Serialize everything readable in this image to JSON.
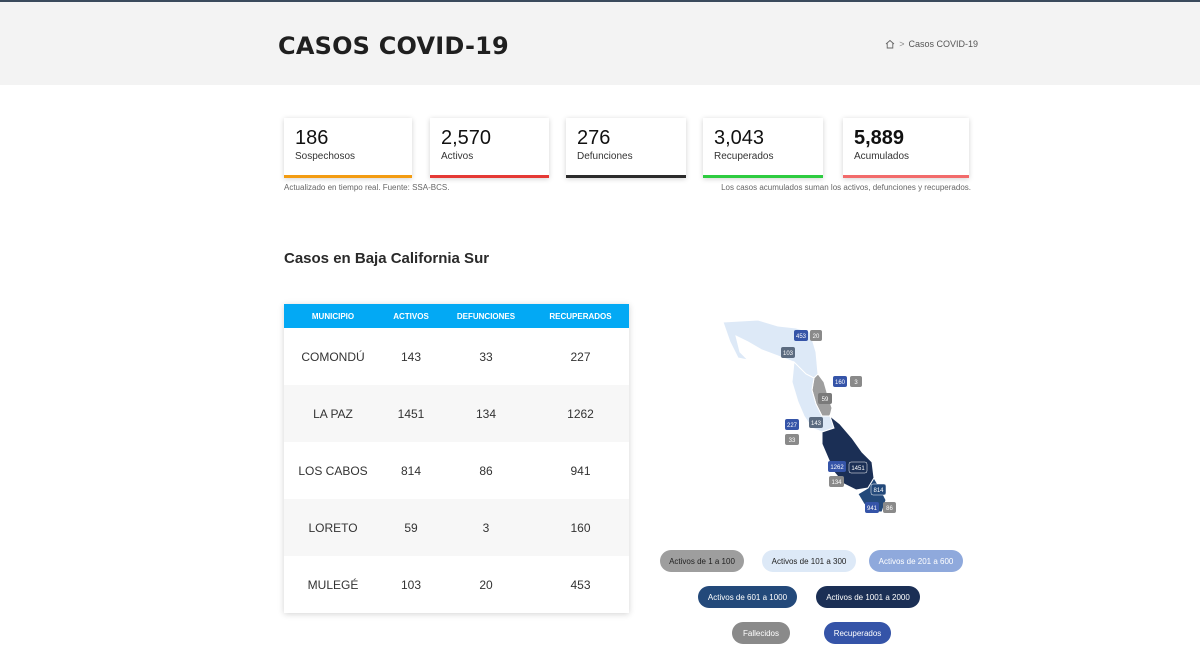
{
  "header": {
    "title": "CASOS COVID-19",
    "breadcrumb": {
      "current": "Casos COVID-19"
    }
  },
  "stats": [
    {
      "value": "186",
      "label": "Sospechosos",
      "color": "#f39c12"
    },
    {
      "value": "2,570",
      "label": "Activos",
      "color": "#e53935"
    },
    {
      "value": "276",
      "label": "Defunciones",
      "color": "#2b2b2b"
    },
    {
      "value": "3,043",
      "label": "Recuperados",
      "color": "#2ecc40"
    },
    {
      "value": "5,889",
      "label": "Acumulados",
      "color": "#f26b6b"
    }
  ],
  "notes": {
    "left": "Actualizado en tiempo real. Fuente: SSA-BCS.",
    "right": "Los casos acumulados suman los activos, defunciones y recuperados."
  },
  "section": {
    "title": "Casos en Baja California Sur"
  },
  "table": {
    "headers": [
      "MUNICIPIO",
      "ACTIVOS",
      "DEFUNCIONES",
      "RECUPERADOS"
    ],
    "rows": [
      [
        "COMONDÚ",
        "143",
        "33",
        "227"
      ],
      [
        "LA PAZ",
        "1451",
        "134",
        "1262"
      ],
      [
        "LOS CABOS",
        "814",
        "86",
        "941"
      ],
      [
        "LORETO",
        "59",
        "3",
        "160"
      ],
      [
        "MULEGÉ",
        "103",
        "20",
        "453"
      ]
    ]
  },
  "map_labels": {
    "mulege_recuperados": "453",
    "mulege_fallecidos": "20",
    "mulege_activos": "103",
    "loreto_recuperados": "160",
    "loreto_fallecidos": "3",
    "loreto_activos": "59",
    "comondu_recuperados": "227",
    "comondu_fallecidos": "33",
    "comondu_activos": "143",
    "lapaz_recuperados": "1262",
    "lapaz_fallecidos": "134",
    "lapaz_activos": "1451",
    "loscabos_activos": "814",
    "loscabos_recuperados": "941",
    "loscabos_fallecidos": "86"
  },
  "legend": [
    {
      "label": "Activos de 1 a 100",
      "bg": "#9e9e9e",
      "fg": "#222222"
    },
    {
      "label": "Activos de 101 a 300",
      "bg": "#dde9f7",
      "fg": "#222222"
    },
    {
      "label": "Activos de 201 a 600",
      "bg": "#8fa9dc",
      "fg": "#ffffff"
    },
    {
      "label": "Activos de 601 a 1000",
      "bg": "#23497a",
      "fg": "#ffffff"
    },
    {
      "label": "Activos de 1001 a 2000",
      "bg": "#1b2f55",
      "fg": "#ffffff"
    },
    {
      "label": "Fallecidos",
      "bg": "#8a8a8a",
      "fg": "#ffffff"
    },
    {
      "label": "Recuperados",
      "bg": "#3554a8",
      "fg": "#ffffff"
    }
  ]
}
